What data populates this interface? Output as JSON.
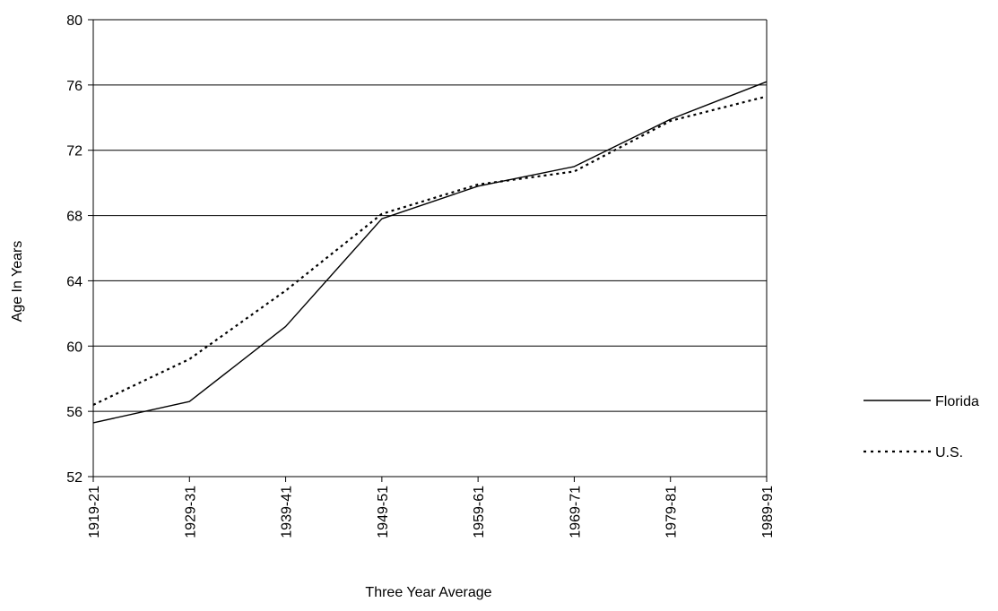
{
  "chart_data": {
    "type": "line",
    "title": "",
    "xlabel": "Three Year Average",
    "ylabel": "Age In Years",
    "categories": [
      "1919-21",
      "1929-31",
      "1939-41",
      "1949-51",
      "1959-61",
      "1969-71",
      "1979-81",
      "1989-91"
    ],
    "ylim": [
      52,
      80
    ],
    "yticks": [
      52,
      56,
      60,
      64,
      68,
      72,
      76,
      80
    ],
    "grid": true,
    "legend_position": "right",
    "series": [
      {
        "name": "Florida",
        "style": "solid",
        "color": "#000000",
        "values": [
          55.3,
          56.6,
          61.2,
          67.8,
          69.8,
          71.0,
          73.9,
          76.2
        ]
      },
      {
        "name": "U.S.",
        "style": "dotted",
        "color": "#000000",
        "values": [
          56.4,
          59.2,
          63.4,
          68.1,
          69.9,
          70.7,
          73.8,
          75.3
        ]
      }
    ]
  }
}
